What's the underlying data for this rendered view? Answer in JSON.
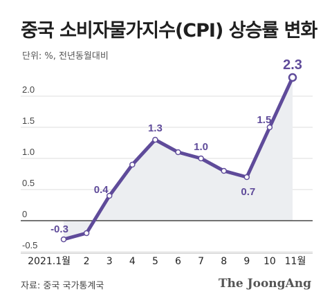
{
  "header": {
    "title": "중국 소비자물가지수(CPI) 상승률 변화",
    "unit_note": "단위: %, 전년동월대비"
  },
  "footer": {
    "source": "자료: 중국 국가통계국",
    "logo": "The JoongAng"
  },
  "colors": {
    "line": "#5f4b9a",
    "area": "#eceef1",
    "point_label": "#5f4b9a",
    "zero_line": "#222222",
    "grid": "#dddddd"
  },
  "chart_data": {
    "type": "area",
    "title": "중국 소비자물가지수(CPI) 상승률 변화",
    "ylabel": "단위: %, 전년동월대비",
    "ylim": [
      -0.5,
      2.3
    ],
    "yticks": [
      {
        "value": -0.5,
        "label": "-0.5"
      },
      {
        "value": 0,
        "label": "0"
      },
      {
        "value": 0.5,
        "label": "0.5"
      },
      {
        "value": 1.0,
        "label": "1.0"
      },
      {
        "value": 1.5,
        "label": "1.5"
      },
      {
        "value": 2.0,
        "label": "2.0"
      }
    ],
    "categories": [
      "2021.1월",
      "2",
      "3",
      "4",
      "5",
      "6",
      "7",
      "8",
      "9",
      "10",
      "11월"
    ],
    "values": [
      -0.3,
      -0.2,
      0.4,
      0.9,
      1.3,
      1.1,
      1.0,
      0.8,
      0.7,
      1.5,
      2.3
    ],
    "data_labels": [
      {
        "index": 0,
        "text": "-0.3"
      },
      {
        "index": 2,
        "text": "0.4"
      },
      {
        "index": 4,
        "text": "1.3"
      },
      {
        "index": 6,
        "text": "1.0"
      },
      {
        "index": 8,
        "text": "0.7"
      },
      {
        "index": 9,
        "text": "1.5"
      },
      {
        "index": 10,
        "text": "2.3"
      }
    ],
    "grid": true
  }
}
